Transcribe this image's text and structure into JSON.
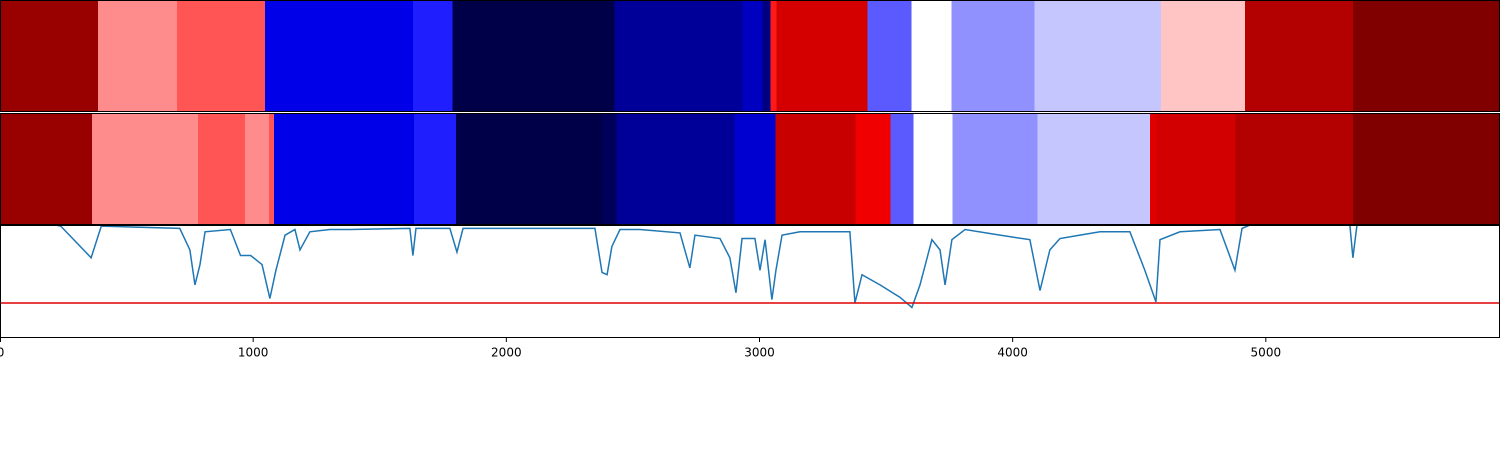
{
  "chart_data": {
    "type": "band_line",
    "xlim": [
      0,
      5925
    ],
    "xticks": [
      0,
      1000,
      2000,
      3000,
      4000,
      5000
    ],
    "bands": [
      {
        "edges": [
          0,
          387,
          700,
          1047,
          1632,
          1787,
          2427,
          2933,
          3012,
          3043,
          3067,
          3427,
          3601,
          3759,
          4087,
          4585,
          4917,
          5344,
          5925
        ],
        "colors": [
          "#990000",
          "#ff8c8c",
          "#ff5555",
          "#0000e8",
          "#1e1eff",
          "#000048",
          "#000099",
          "#0000c0",
          "#000080",
          "#ff1a1a",
          "#d40000",
          "#5a5aff",
          "#ffffff",
          "#9090ff",
          "#c6c6ff",
          "#ffc4c4",
          "#b30000",
          "#800000"
        ]
      },
      {
        "edges": [
          0,
          364,
          783,
          968,
          1063,
          1083,
          1636,
          1802,
          2379,
          2435,
          2901,
          3063,
          3379,
          3518,
          3609,
          3763,
          4099,
          4542,
          4569,
          4881,
          5344,
          5925
        ],
        "colors": [
          "#990000",
          "#ff8c8c",
          "#ff5555",
          "#ff8c8c",
          "#ff5555",
          "#0000e8",
          "#1e1eff",
          "#000048",
          "#00005a",
          "#000099",
          "#0000d0",
          "#c80000",
          "#f00000",
          "#5a5aff",
          "#ffffff",
          "#9090ff",
          "#c6c6ff",
          "#e00000",
          "#d20000",
          "#b30000",
          "#800000"
        ]
      }
    ],
    "line": {
      "color": "#1f77b4",
      "x": [
        0,
        220,
        240,
        360,
        400,
        710,
        750,
        770,
        790,
        810,
        910,
        950,
        990,
        1035,
        1066,
        1090,
        1126,
        1165,
        1185,
        1224,
        1303,
        1382,
        1619,
        1631,
        1643,
        1777,
        1805,
        1829,
        2350,
        2378,
        2398,
        2417,
        2449,
        2528,
        2686,
        2725,
        2745,
        2844,
        2883,
        2907,
        2931,
        2982,
        3002,
        3022,
        3049,
        3065,
        3089,
        3160,
        3357,
        3377,
        3405,
        3476,
        3555,
        3602,
        3634,
        3681,
        3713,
        3733,
        3760,
        3812,
        3950,
        4068,
        4108,
        4147,
        4187,
        4266,
        4345,
        4463,
        4522,
        4566,
        4582,
        4661,
        4819,
        4878,
        4906,
        4937,
        5332,
        5344,
        5360,
        5925
      ],
      "values": [
        1.0,
        1.0,
        0.99,
        0.71,
        0.99,
        0.97,
        0.78,
        0.47,
        0.65,
        0.94,
        0.96,
        0.73,
        0.73,
        0.65,
        0.35,
        0.6,
        0.91,
        0.96,
        0.78,
        0.94,
        0.96,
        0.96,
        0.97,
        0.73,
        0.97,
        0.97,
        0.76,
        0.97,
        0.97,
        0.58,
        0.56,
        0.81,
        0.96,
        0.96,
        0.93,
        0.62,
        0.91,
        0.88,
        0.71,
        0.4,
        0.88,
        0.88,
        0.6,
        0.87,
        0.34,
        0.6,
        0.91,
        0.94,
        0.94,
        0.31,
        0.56,
        0.47,
        0.36,
        0.27,
        0.47,
        0.87,
        0.78,
        0.47,
        0.87,
        0.96,
        0.91,
        0.87,
        0.42,
        0.78,
        0.88,
        0.91,
        0.94,
        0.94,
        0.6,
        0.32,
        0.87,
        0.94,
        0.96,
        0.6,
        0.97,
        1.0,
        1.0,
        0.71,
        1.0,
        1.0
      ]
    },
    "ylim": [
      0,
      1
    ],
    "threshold": {
      "value": 0.31,
      "color": "#e00000"
    }
  }
}
